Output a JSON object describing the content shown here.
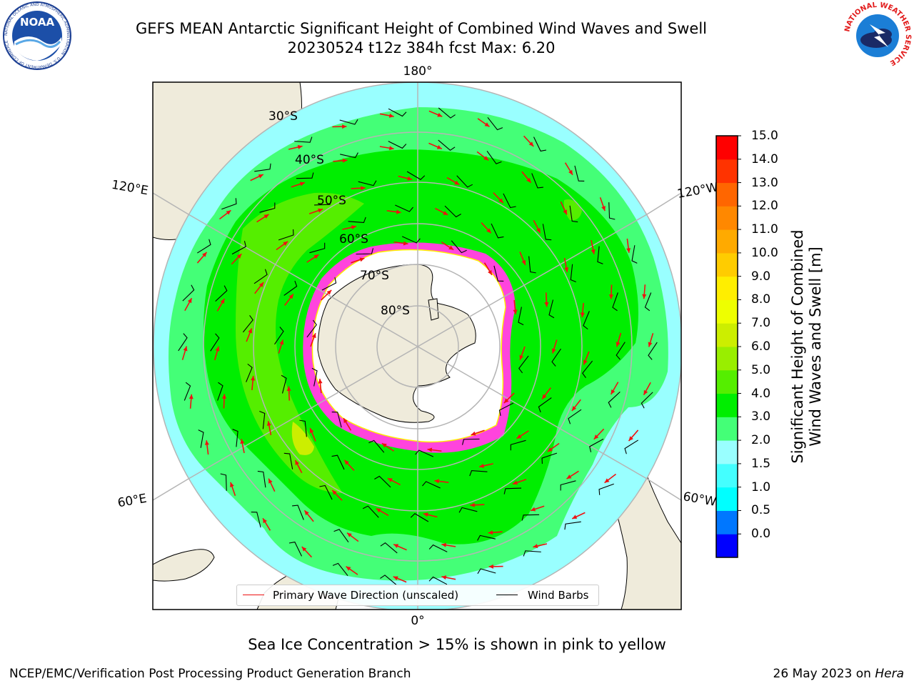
{
  "header": {
    "title_line1": "GEFS MEAN Antarctic Significant Height of Combined Wind Waves and Swell",
    "title_line2": "20230524 t12z 384h fcst   Max: 6.20"
  },
  "logos": {
    "noaa_text": "NOAA",
    "noaa_ring_text": "NATIONAL OCEANIC AND ATMOSPHERIC ADMINISTRATION · U.S. DEPARTMENT OF COMMERCE",
    "nws_ring_text": "NATIONAL WEATHER SERVICE"
  },
  "map": {
    "longitude_labels": {
      "top": "180°",
      "bottom": "0°",
      "upper_left": "120°E",
      "upper_right": "120°W",
      "lower_left": "60°E",
      "lower_right": "60°W"
    },
    "latitude_labels": [
      "30°S",
      "40°S",
      "50°S",
      "60°S",
      "70°S",
      "80°S"
    ],
    "colors": {
      "land": "#efebdb",
      "ice": "#ffffff",
      "sea_ice_edge": "#ff44dd",
      "arrow": "#ee1111",
      "barb": "#000000",
      "grid": "#b5b5b5"
    }
  },
  "legend": {
    "wave_direction": "Primary Wave Direction (unscaled)",
    "wind_barbs": "Wind Barbs"
  },
  "colorbar": {
    "title_line1": "Significant Height of Combined",
    "title_line2": "Wind Waves and Swell [m]",
    "labels": [
      "15.0",
      "14.0",
      "13.0",
      "12.0",
      "11.0",
      "10.0",
      "9.0",
      "8.0",
      "7.0",
      "6.0",
      "5.0",
      "4.0",
      "3.0",
      "2.0",
      "1.5",
      "1.0",
      "0.5",
      "0.0"
    ],
    "colors_bottom_to_top": [
      "#0000ff",
      "#0077ff",
      "#00ffff",
      "#44ffff",
      "#99ffff",
      "#44ff77",
      "#00ee00",
      "#55ee00",
      "#99ee00",
      "#ccee00",
      "#eeff00",
      "#ffee00",
      "#ffcc00",
      "#ffaa00",
      "#ff8800",
      "#ff6600",
      "#ff3300",
      "#ff0000"
    ]
  },
  "notes": {
    "sea_ice": "Sea Ice Concentration > 15% is shown in pink to yellow"
  },
  "footer": {
    "left": "NCEP/EMC/Verification Post Processing Product Generation Branch",
    "right_prefix": "26 May 2023 on ",
    "right_host": "Hera"
  }
}
